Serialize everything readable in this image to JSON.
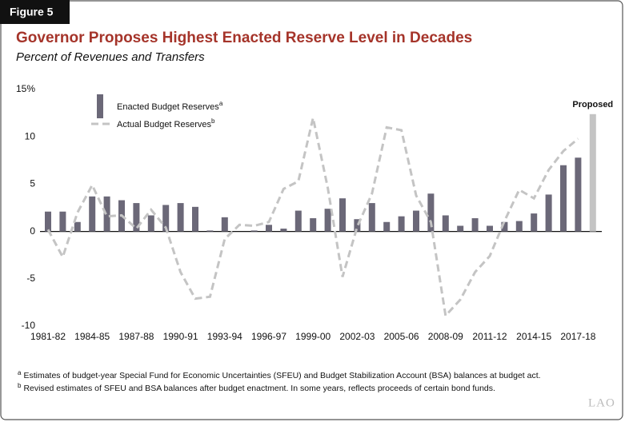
{
  "figure_label": "Figure 5",
  "chart_data": {
    "type": "bar_line",
    "title": "Governor Proposes Highest Enacted Reserve Level in Decades",
    "subtitle": "Percent of Revenues and Transfers",
    "categories": [
      "1981-82",
      null,
      null,
      "1984-85",
      null,
      null,
      "1987-88",
      null,
      null,
      "1990-91",
      null,
      null,
      "1993-94",
      null,
      null,
      "1996-97",
      null,
      null,
      "1999-00",
      null,
      null,
      "2002-03",
      null,
      null,
      "2005-06",
      null,
      null,
      "2008-09",
      null,
      null,
      "2011-12",
      null,
      null,
      "2014-15",
      null,
      null,
      "2017-18",
      null
    ],
    "series": [
      {
        "name": "Enacted Budget Reserves",
        "note": "a",
        "kind": "bar",
        "color": "#6b6878",
        "values": [
          2.1,
          2.1,
          1.0,
          3.7,
          3.7,
          3.3,
          3.0,
          1.7,
          2.8,
          3.0,
          2.6,
          0.1,
          1.5,
          0,
          0.1,
          0.7,
          0.3,
          2.2,
          1.4,
          2.4,
          3.5,
          1.3,
          3.0,
          1.0,
          1.6,
          2.2,
          4.0,
          1.7,
          0.6,
          1.4,
          0.6,
          1.0,
          1.1,
          1.9,
          3.9,
          7.0,
          7.8,
          null
        ]
      },
      {
        "name": "Actual Budget Reserves",
        "note": "b",
        "kind": "line",
        "color": "#c4c4c4",
        "values": [
          0.2,
          -2.7,
          2.0,
          4.9,
          1.6,
          1.7,
          0.3,
          2.3,
          0.4,
          -4.3,
          -7.1,
          -6.9,
          -0.8,
          0.7,
          0.6,
          1.0,
          4.5,
          5.3,
          12.0,
          4.6,
          -4.8,
          0.5,
          4.0,
          11.0,
          10.7,
          3.8,
          1.0,
          -8.9,
          -7.2,
          -4.3,
          -2.6,
          1.1,
          4.4,
          3.5,
          6.5,
          8.5,
          9.8,
          null
        ]
      }
    ],
    "proposed": {
      "label": "Proposed",
      "index": 37,
      "value": 12.4,
      "color": "#c4c4c4"
    },
    "ylim": [
      -10,
      15
    ],
    "yticks": [
      -10,
      -5,
      0,
      5,
      10,
      {
        "value": 15,
        "label": "15%"
      }
    ],
    "footnotes": [
      {
        "marker": "a",
        "text": "Estimates of budget-year Special Fund for Economic Uncertainties (SFEU) and Budget Stabilization Account (BSA) balances at budget act."
      },
      {
        "marker": "b",
        "text": "Revised estimates of SFEU and BSA balances after budget enactment. In some years, reflects proceeds of certain bond funds."
      }
    ]
  },
  "logo": "LAO"
}
